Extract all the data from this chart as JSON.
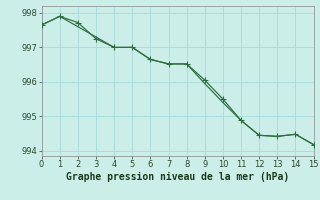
{
  "title": "Graphe pression niveau de la mer (hPa)",
  "background_color": "#cceee8",
  "grid_color": "#aadddd",
  "line_color": "#2d6e3e",
  "x_line1": [
    0,
    1,
    2,
    3,
    4,
    5,
    6,
    7,
    8,
    9,
    10,
    11,
    12,
    13,
    14,
    15
  ],
  "y_line1": [
    997.65,
    997.9,
    997.72,
    997.25,
    997.0,
    997.0,
    996.65,
    996.52,
    996.52,
    996.05,
    995.5,
    994.88,
    994.45,
    994.42,
    994.48,
    994.18
  ],
  "x_line2": [
    0,
    1,
    2,
    3,
    4,
    5,
    6,
    7,
    8,
    9,
    10,
    11,
    12,
    13,
    14,
    15
  ],
  "y_line2": [
    997.65,
    997.9,
    997.6,
    997.3,
    997.0,
    997.0,
    996.65,
    996.52,
    996.52,
    995.95,
    995.4,
    994.88,
    994.45,
    994.42,
    994.48,
    994.18
  ],
  "xlim": [
    0,
    15
  ],
  "ylim": [
    993.85,
    998.2
  ],
  "yticks": [
    994,
    995,
    996,
    997,
    998
  ],
  "xticks": [
    0,
    1,
    2,
    3,
    4,
    5,
    6,
    7,
    8,
    9,
    10,
    11,
    12,
    13,
    14,
    15
  ],
  "title_fontsize": 7,
  "tick_fontsize": 6
}
